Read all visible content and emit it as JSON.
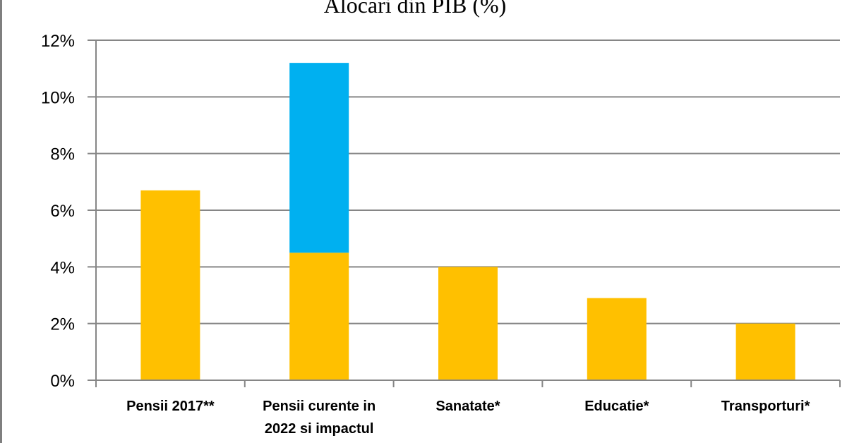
{
  "chart_data": {
    "type": "bar",
    "stacked": true,
    "title": "Alocari din PIB (%)",
    "xlabel": "",
    "ylabel": "",
    "ylim": [
      0,
      12
    ],
    "y_ticks": [
      "0%",
      "2%",
      "4%",
      "6%",
      "8%",
      "10%",
      "12%"
    ],
    "grid": true,
    "legend": "none",
    "categories": [
      [
        "Pensii 2017**"
      ],
      [
        "Pensii curente in",
        "2022 si impactul"
      ],
      [
        "Sanatate*"
      ],
      [
        "Educatie*"
      ],
      [
        "Transporturi*"
      ]
    ],
    "series": [
      {
        "color": "#ffc000",
        "values": [
          6.7,
          4.5,
          4.0,
          2.9,
          2.0
        ]
      },
      {
        "color": "#00b0f0",
        "values": [
          0,
          6.7,
          0,
          0,
          0
        ]
      }
    ],
    "colors": {
      "grid": "#868686",
      "axis": "#868686"
    }
  }
}
